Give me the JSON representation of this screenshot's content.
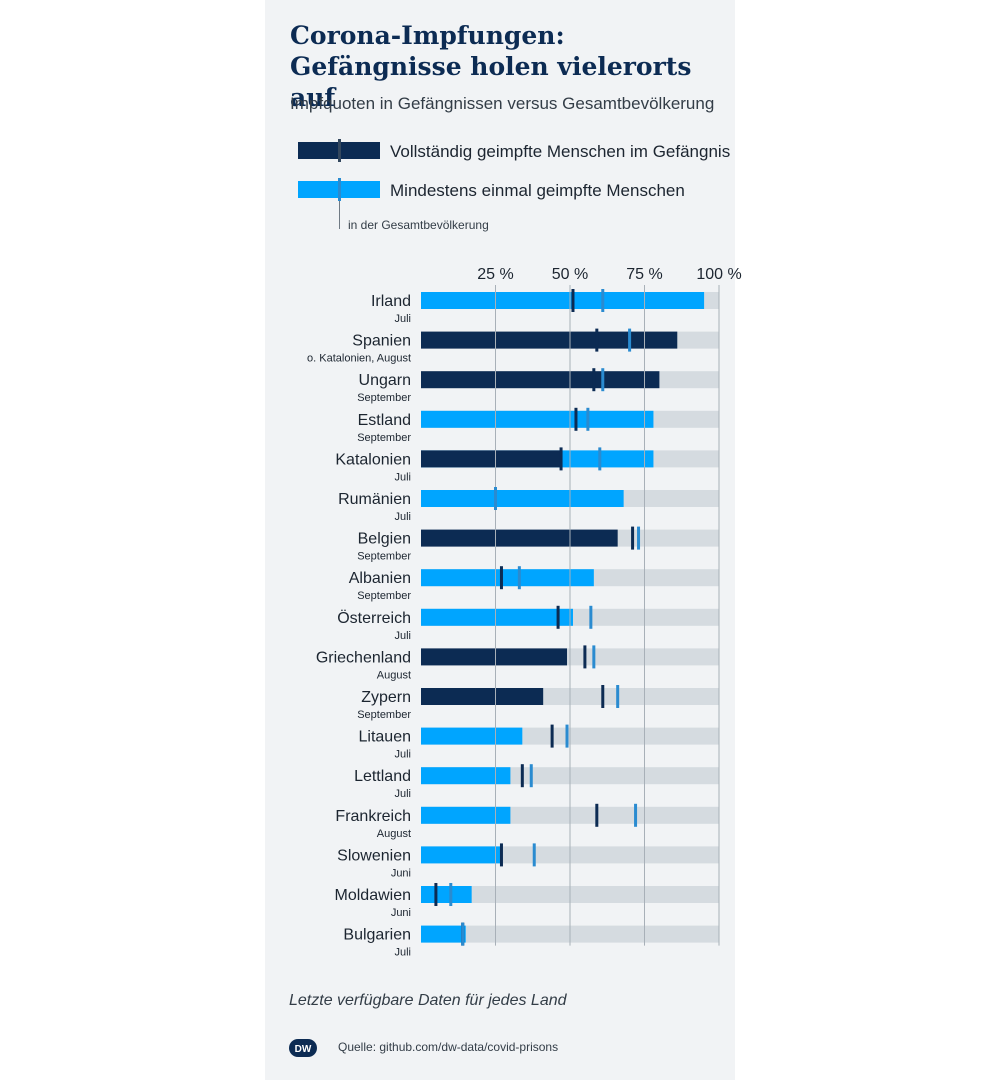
{
  "header": {
    "title_line1": "Corona-Impfungen:",
    "title_line2": "Gefängnisse holen vielerorts auf",
    "subtitle": "Impfquoten in Gefängnissen versus Gesamtbevölkerung"
  },
  "legend": {
    "full": "Vollständig geimpfte Menschen im Gefängnis",
    "once": "Mindestens einmal geimpfte Menschen",
    "marker_note": "in der Gesamtbevölkerung"
  },
  "footnote": "Letzte verfügbare Daten für jedes Land",
  "source": "Quelle: github.com/dw-data/covid-prisons",
  "logo_text": "DW",
  "colors": {
    "full": "#0c2b53",
    "once": "#00a5ff",
    "track": "#d5dbe0",
    "marker_once": "#2a8bd0",
    "grid": "#a8b0b8"
  },
  "chart_data": {
    "type": "bar",
    "orientation": "horizontal",
    "xlim": [
      0,
      100
    ],
    "tick_labels": [
      "25 %",
      "50 %",
      "75 %",
      "100 %"
    ],
    "tick_values": [
      25,
      50,
      75,
      100
    ],
    "series": [
      {
        "name": "Vollständig geimpfte Menschen im Gefängnis",
        "key": "full"
      },
      {
        "name": "Mindestens einmal geimpfte Menschen",
        "key": "once"
      }
    ],
    "rows": [
      {
        "country": "Irland",
        "date": "Juli",
        "series": "once",
        "value": 95,
        "pop_full": 51,
        "pop_once": 61
      },
      {
        "country": "Spanien",
        "date": "o. Katalonien, August",
        "series": "full",
        "value": 86,
        "pop_full": 59,
        "pop_once": 70
      },
      {
        "country": "Ungarn",
        "date": "September",
        "series": "full",
        "value": 80,
        "pop_full": 58,
        "pop_once": 61
      },
      {
        "country": "Estland",
        "date": "September",
        "series": "once",
        "value": 78,
        "pop_full": 52,
        "pop_once": 56
      },
      {
        "country": "Katalonien",
        "date": "Juli",
        "series": "full",
        "value": 47,
        "series2": "once",
        "value2": 78,
        "pop_full": 47,
        "pop_once": 60
      },
      {
        "country": "Rumänien",
        "date": "Juli",
        "series": "once",
        "value": 68,
        "pop_full": 25,
        "pop_once": 25
      },
      {
        "country": "Belgien",
        "date": "September",
        "series": "full",
        "value": 66,
        "pop_full": 71,
        "pop_once": 73
      },
      {
        "country": "Albanien",
        "date": "September",
        "series": "once",
        "value": 58,
        "pop_full": 27,
        "pop_once": 33
      },
      {
        "country": "Österreich",
        "date": "Juli",
        "series": "once",
        "value": 51,
        "pop_full": 46,
        "pop_once": 57
      },
      {
        "country": "Griechenland",
        "date": "August",
        "series": "full",
        "value": 49,
        "pop_full": 55,
        "pop_once": 58
      },
      {
        "country": "Zypern",
        "date": "September",
        "series": "full",
        "value": 41,
        "pop_full": 61,
        "pop_once": 66
      },
      {
        "country": "Litauen",
        "date": "Juli",
        "series": "once",
        "value": 34,
        "pop_full": 44,
        "pop_once": 49
      },
      {
        "country": "Lettland",
        "date": "Juli",
        "series": "once",
        "value": 30,
        "pop_full": 34,
        "pop_once": 37
      },
      {
        "country": "Frankreich",
        "date": "August",
        "series": "once",
        "value": 30,
        "pop_full": 59,
        "pop_once": 72
      },
      {
        "country": "Slowenien",
        "date": "Juni",
        "series": "once",
        "value": 27,
        "pop_full": 27,
        "pop_once": 38
      },
      {
        "country": "Moldawien",
        "date": "Juni",
        "series": "once",
        "value": 17,
        "pop_full": 5,
        "pop_once": 10
      },
      {
        "country": "Bulgarien",
        "date": "Juli",
        "series": "once",
        "value": 15,
        "pop_full": 14,
        "pop_once": 14
      }
    ]
  }
}
